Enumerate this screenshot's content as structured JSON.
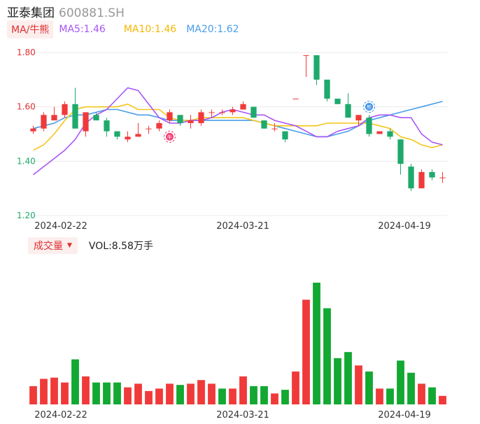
{
  "header": {
    "name": "亚泰集团",
    "code": "600881.SH"
  },
  "indicators": {
    "toggle": "MA/牛熊",
    "ma5": "MA5:1.46",
    "ma10": "MA10:1.46",
    "ma20": "MA20:1.62"
  },
  "volume_header": {
    "toggle": "成交量",
    "vol": "VOL:8.58万手"
  },
  "colors": {
    "up": "#f03a3a",
    "down": "#1daa6c",
    "volUp": "#f03a3a",
    "volDown": "#12a832",
    "ma5": "#a855f7",
    "ma10": "#f5c518",
    "ma20": "#4a9ee8",
    "axisUp": "#e03030",
    "axisDown": "#1daa6c",
    "grid": "#ececec"
  },
  "icons": {
    "bull": "bull-badge-icon",
    "bear": "bear-badge-icon"
  },
  "chart_data": [
    {
      "type": "candlestick",
      "ylim": [
        1.2,
        1.8
      ],
      "yticks": [
        "1.80",
        "1.60",
        "1.40",
        "1.20"
      ],
      "xticks": [
        "2024-02-22",
        "2024-03-21",
        "2024-04-19"
      ],
      "candles": [
        {
          "o": 1.51,
          "c": 1.52,
          "h": 1.53,
          "l": 1.5
        },
        {
          "o": 1.52,
          "c": 1.57,
          "h": 1.58,
          "l": 1.51
        },
        {
          "o": 1.55,
          "c": 1.57,
          "h": 1.6,
          "l": 1.55
        },
        {
          "o": 1.57,
          "c": 1.61,
          "h": 1.62,
          "l": 1.56
        },
        {
          "o": 1.61,
          "c": 1.52,
          "h": 1.67,
          "l": 1.52
        },
        {
          "o": 1.51,
          "c": 1.58,
          "h": 1.58,
          "l": 1.49
        },
        {
          "o": 1.57,
          "c": 1.55,
          "h": 1.58,
          "l": 1.55
        },
        {
          "o": 1.55,
          "c": 1.51,
          "h": 1.56,
          "l": 1.49
        },
        {
          "o": 1.51,
          "c": 1.49,
          "h": 1.51,
          "l": 1.48
        },
        {
          "o": 1.48,
          "c": 1.49,
          "h": 1.51,
          "l": 1.47
        },
        {
          "o": 1.49,
          "c": 1.5,
          "h": 1.54,
          "l": 1.49
        },
        {
          "o": 1.52,
          "c": 1.52,
          "h": 1.53,
          "l": 1.5
        },
        {
          "o": 1.52,
          "c": 1.54,
          "h": 1.55,
          "l": 1.51
        },
        {
          "o": 1.55,
          "c": 1.58,
          "h": 1.59,
          "l": 1.54
        },
        {
          "o": 1.57,
          "c": 1.54,
          "h": 1.57,
          "l": 1.53
        },
        {
          "o": 1.54,
          "c": 1.55,
          "h": 1.57,
          "l": 1.52
        },
        {
          "o": 1.54,
          "c": 1.58,
          "h": 1.59,
          "l": 1.53
        },
        {
          "o": 1.58,
          "c": 1.58,
          "h": 1.59,
          "l": 1.56
        },
        {
          "o": 1.58,
          "c": 1.58,
          "h": 1.59,
          "l": 1.57
        },
        {
          "o": 1.58,
          "c": 1.59,
          "h": 1.6,
          "l": 1.57
        },
        {
          "o": 1.59,
          "c": 1.61,
          "h": 1.62,
          "l": 1.59
        },
        {
          "o": 1.6,
          "c": 1.56,
          "h": 1.6,
          "l": 1.56
        },
        {
          "o": 1.55,
          "c": 1.52,
          "h": 1.55,
          "l": 1.52
        },
        {
          "o": 1.52,
          "c": 1.52,
          "h": 1.54,
          "l": 1.51
        },
        {
          "o": 1.51,
          "c": 1.48,
          "h": 1.51,
          "l": 1.47
        },
        {
          "o": 1.63,
          "c": 1.63,
          "h": 1.63,
          "l": 1.63
        },
        {
          "o": 1.79,
          "c": 1.79,
          "h": 1.79,
          "l": 1.71
        },
        {
          "o": 1.79,
          "c": 1.7,
          "h": 1.79,
          "l": 1.68
        },
        {
          "o": 1.7,
          "c": 1.63,
          "h": 1.7,
          "l": 1.62
        },
        {
          "o": 1.63,
          "c": 1.61,
          "h": 1.63,
          "l": 1.61
        },
        {
          "o": 1.61,
          "c": 1.56,
          "h": 1.65,
          "l": 1.56
        },
        {
          "o": 1.55,
          "c": 1.57,
          "h": 1.57,
          "l": 1.53
        },
        {
          "o": 1.56,
          "c": 1.5,
          "h": 1.57,
          "l": 1.49
        },
        {
          "o": 1.5,
          "c": 1.51,
          "h": 1.51,
          "l": 1.5
        },
        {
          "o": 1.51,
          "c": 1.49,
          "h": 1.52,
          "l": 1.48
        },
        {
          "o": 1.48,
          "c": 1.39,
          "h": 1.48,
          "l": 1.35
        },
        {
          "o": 1.38,
          "c": 1.3,
          "h": 1.39,
          "l": 1.29
        },
        {
          "o": 1.3,
          "c": 1.36,
          "h": 1.37,
          "l": 1.3
        },
        {
          "o": 1.36,
          "c": 1.34,
          "h": 1.37,
          "l": 1.33
        },
        {
          "o": 1.34,
          "c": 1.34,
          "h": 1.36,
          "l": 1.32
        }
      ],
      "ma5": [
        1.35,
        1.38,
        1.41,
        1.44,
        1.48,
        1.54,
        1.57,
        1.59,
        1.63,
        1.67,
        1.66,
        1.61,
        1.56,
        1.54,
        1.54,
        1.55,
        1.55,
        1.56,
        1.58,
        1.59,
        1.58,
        1.57,
        1.57,
        1.55,
        1.54,
        1.53,
        1.51,
        1.49,
        1.49,
        1.51,
        1.52,
        1.53,
        1.56,
        1.57,
        1.57,
        1.56,
        1.56,
        1.5,
        1.47,
        1.46
      ],
      "ma10": [
        1.44,
        1.46,
        1.5,
        1.55,
        1.59,
        1.6,
        1.6,
        1.6,
        1.6,
        1.61,
        1.59,
        1.59,
        1.59,
        1.56,
        1.55,
        1.55,
        1.56,
        1.56,
        1.56,
        1.56,
        1.56,
        1.55,
        1.54,
        1.53,
        1.53,
        1.53,
        1.53,
        1.53,
        1.54,
        1.54,
        1.54,
        1.54,
        1.54,
        1.53,
        1.52,
        1.49,
        1.48,
        1.46,
        1.45,
        1.46
      ],
      "ma20": [
        1.52,
        1.53,
        1.54,
        1.56,
        1.57,
        1.57,
        1.58,
        1.59,
        1.59,
        1.58,
        1.57,
        1.57,
        1.56,
        1.55,
        1.55,
        1.55,
        1.55,
        1.55,
        1.55,
        1.55,
        1.55,
        1.55,
        1.54,
        1.53,
        1.52,
        1.51,
        1.5,
        1.49,
        1.49,
        1.5,
        1.51,
        1.53,
        1.55,
        1.56,
        1.57,
        1.58,
        1.59,
        1.6,
        1.61,
        1.62
      ]
    },
    {
      "type": "bar",
      "ylim": [
        0,
        100
      ],
      "xticks": [
        "2024-02-22",
        "2024-03-21",
        "2024-04-19"
      ],
      "values": [
        15,
        21,
        22,
        18,
        37,
        23,
        18,
        18,
        18,
        14,
        17,
        11,
        13,
        17,
        16,
        17,
        20,
        17,
        13,
        13,
        23,
        15,
        15,
        9,
        12,
        27,
        86,
        100,
        79,
        38,
        43,
        32,
        27,
        13,
        13,
        36,
        26,
        17,
        14,
        7
      ],
      "up": [
        true,
        true,
        true,
        true,
        false,
        true,
        false,
        false,
        false,
        true,
        true,
        true,
        true,
        true,
        false,
        true,
        true,
        true,
        false,
        true,
        true,
        false,
        false,
        true,
        false,
        true,
        true,
        false,
        false,
        false,
        false,
        true,
        false,
        true,
        false,
        false,
        false,
        true,
        false,
        true
      ]
    }
  ]
}
